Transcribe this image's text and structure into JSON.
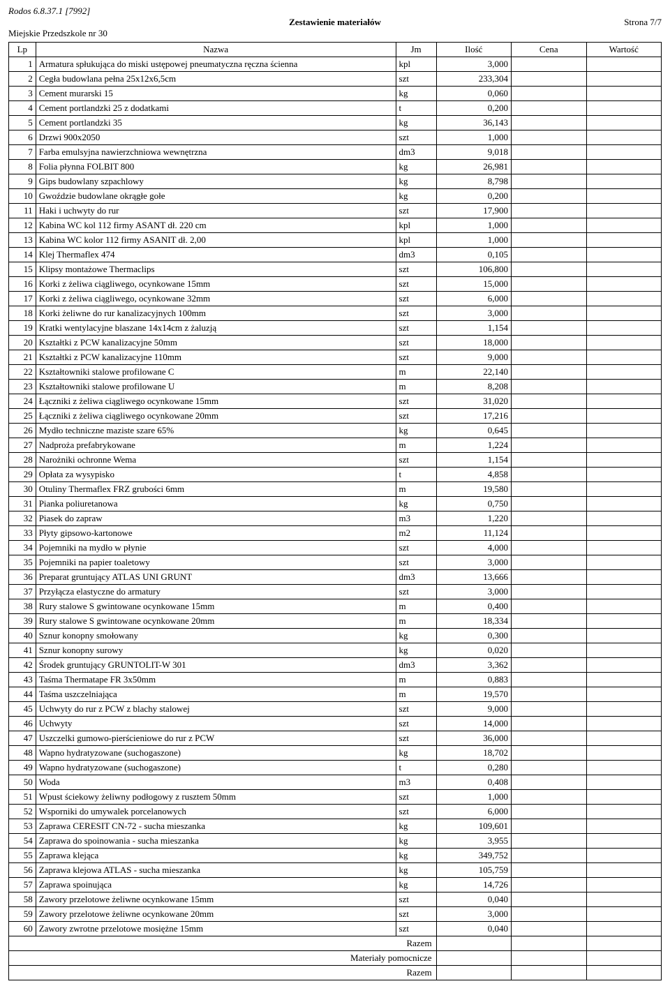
{
  "meta": {
    "app_line": "Rodos 6.8.37.1 [7992]",
    "title": "Zestawienie materiałów",
    "page_label": "Strona 7/7",
    "project": "Miejskie Przedszkole nr 30"
  },
  "table": {
    "headers": {
      "lp": "Lp",
      "name": "Nazwa",
      "jm": "Jm",
      "qty": "Ilość",
      "price": "Cena",
      "value": "Wartość"
    },
    "rows": [
      {
        "lp": "1",
        "name": "Armatura spłukująca do miski ustępowej pneumatyczna ręczna ścienna",
        "jm": "kpl",
        "qty": "3,000"
      },
      {
        "lp": "2",
        "name": "Cegła budowlana pełna 25x12x6,5cm",
        "jm": "szt",
        "qty": "233,304"
      },
      {
        "lp": "3",
        "name": "Cement murarski 15",
        "jm": "kg",
        "qty": "0,060"
      },
      {
        "lp": "4",
        "name": "Cement portlandzki 25 z dodatkami",
        "jm": "t",
        "qty": "0,200"
      },
      {
        "lp": "5",
        "name": "Cement portlandzki 35",
        "jm": "kg",
        "qty": "36,143"
      },
      {
        "lp": "6",
        "name": "Drzwi 900x2050",
        "jm": "szt",
        "qty": "1,000"
      },
      {
        "lp": "7",
        "name": "Farba emulsyjna nawierzchniowa wewnętrzna",
        "jm": "dm3",
        "qty": "9,018"
      },
      {
        "lp": "8",
        "name": "Folia płynna FOLBIT 800",
        "jm": "kg",
        "qty": "26,981"
      },
      {
        "lp": "9",
        "name": "Gips budowlany szpachlowy",
        "jm": "kg",
        "qty": "8,798"
      },
      {
        "lp": "10",
        "name": "Gwoździe budowlane okrągłe gołe",
        "jm": "kg",
        "qty": "0,200"
      },
      {
        "lp": "11",
        "name": "Haki i uchwyty do rur",
        "jm": "szt",
        "qty": "17,900"
      },
      {
        "lp": "12",
        "name": "Kabina WC kol 112 firmy ASANT dł. 220 cm",
        "jm": "kpl",
        "qty": "1,000"
      },
      {
        "lp": "13",
        "name": "Kabina WC kolor 112 firmy ASANIT dł. 2,00",
        "jm": "kpl",
        "qty": "1,000"
      },
      {
        "lp": "14",
        "name": "Klej Thermaflex 474",
        "jm": "dm3",
        "qty": "0,105"
      },
      {
        "lp": "15",
        "name": "Klipsy montażowe Thermaclips",
        "jm": "szt",
        "qty": "106,800"
      },
      {
        "lp": "16",
        "name": "Korki z żeliwa ciągliwego, ocynkowane 15mm",
        "jm": "szt",
        "qty": "15,000"
      },
      {
        "lp": "17",
        "name": "Korki z żeliwa ciągliwego, ocynkowane 32mm",
        "jm": "szt",
        "qty": "6,000"
      },
      {
        "lp": "18",
        "name": "Korki żeliwne do rur kanalizacyjnych 100mm",
        "jm": "szt",
        "qty": "3,000"
      },
      {
        "lp": "19",
        "name": "Kratki wentylacyjne blaszane 14x14cm z żaluzją",
        "jm": "szt",
        "qty": "1,154"
      },
      {
        "lp": "20",
        "name": "Kształtki z PCW kanalizacyjne  50mm",
        "jm": "szt",
        "qty": "18,000"
      },
      {
        "lp": "21",
        "name": "Kształtki z PCW kanalizacyjne 110mm",
        "jm": "szt",
        "qty": "9,000"
      },
      {
        "lp": "22",
        "name": "Kształtowniki stalowe profilowane C",
        "jm": "m",
        "qty": "22,140"
      },
      {
        "lp": "23",
        "name": "Kształtowniki stalowe profilowane U",
        "jm": "m",
        "qty": "8,208"
      },
      {
        "lp": "24",
        "name": "Łączniki z żeliwa ciągliwego ocynkowane  15mm",
        "jm": "szt",
        "qty": "31,020"
      },
      {
        "lp": "25",
        "name": "Łączniki z żeliwa ciągliwego ocynkowane  20mm",
        "jm": "szt",
        "qty": "17,216"
      },
      {
        "lp": "26",
        "name": "Mydło techniczne maziste szare 65%",
        "jm": "kg",
        "qty": "0,645"
      },
      {
        "lp": "27",
        "name": "Nadproża prefabrykowane",
        "jm": "m",
        "qty": "1,224"
      },
      {
        "lp": "28",
        "name": "Narożniki ochronne Wema",
        "jm": "szt",
        "qty": "1,154"
      },
      {
        "lp": "29",
        "name": "Opłata za wysypisko",
        "jm": "t",
        "qty": "4,858"
      },
      {
        "lp": "30",
        "name": "Otuliny Thermaflex FRZ grubości  6mm",
        "jm": "m",
        "qty": "19,580"
      },
      {
        "lp": "31",
        "name": "Pianka poliuretanowa",
        "jm": "kg",
        "qty": "0,750"
      },
      {
        "lp": "32",
        "name": "Piasek do zapraw",
        "jm": "m3",
        "qty": "1,220"
      },
      {
        "lp": "33",
        "name": "Płyty gipsowo-kartonowe",
        "jm": "m2",
        "qty": "11,124"
      },
      {
        "lp": "34",
        "name": "Pojemniki na mydło w płynie",
        "jm": "szt",
        "qty": "4,000"
      },
      {
        "lp": "35",
        "name": "Pojemniki na papier toaletowy",
        "jm": "szt",
        "qty": "3,000"
      },
      {
        "lp": "36",
        "name": "Preparat gruntujący ATLAS UNI GRUNT",
        "jm": "dm3",
        "qty": "13,666"
      },
      {
        "lp": "37",
        "name": "Przyłącza elastyczne do armatury",
        "jm": "szt",
        "qty": "3,000"
      },
      {
        "lp": "38",
        "name": "Rury stalowe S gwintowane ocynkowane  15mm",
        "jm": "m",
        "qty": "0,400"
      },
      {
        "lp": "39",
        "name": "Rury stalowe S gwintowane ocynkowane  20mm",
        "jm": "m",
        "qty": "18,334"
      },
      {
        "lp": "40",
        "name": "Sznur konopny smołowany",
        "jm": "kg",
        "qty": "0,300"
      },
      {
        "lp": "41",
        "name": "Sznur konopny surowy",
        "jm": "kg",
        "qty": "0,020"
      },
      {
        "lp": "42",
        "name": "Środek gruntujący GRUNTOLIT-W 301",
        "jm": "dm3",
        "qty": "3,362"
      },
      {
        "lp": "43",
        "name": "Taśma Thermatape FR 3x50mm",
        "jm": "m",
        "qty": "0,883"
      },
      {
        "lp": "44",
        "name": "Taśma uszczelniająca",
        "jm": "m",
        "qty": "19,570"
      },
      {
        "lp": "45",
        "name": "Uchwyty do rur z PCW z blachy stalowej",
        "jm": "szt",
        "qty": "9,000"
      },
      {
        "lp": "46",
        "name": "Uchwyty",
        "jm": "szt",
        "qty": "14,000"
      },
      {
        "lp": "47",
        "name": "Uszczelki gumowo-pierścieniowe do rur z PCW",
        "jm": "szt",
        "qty": "36,000"
      },
      {
        "lp": "48",
        "name": "Wapno hydratyzowane (suchogaszone)",
        "jm": "kg",
        "qty": "18,702"
      },
      {
        "lp": "49",
        "name": "Wapno hydratyzowane (suchogaszone)",
        "jm": "t",
        "qty": "0,280"
      },
      {
        "lp": "50",
        "name": "Woda",
        "jm": "m3",
        "qty": "0,408"
      },
      {
        "lp": "51",
        "name": "Wpust ściekowy żeliwny podłogowy z rusztem  50mm",
        "jm": "szt",
        "qty": "1,000"
      },
      {
        "lp": "52",
        "name": "Wsporniki do umywalek porcelanowych",
        "jm": "szt",
        "qty": "6,000"
      },
      {
        "lp": "53",
        "name": "Zaprawa CERESIT CN-72 - sucha mieszanka",
        "jm": "kg",
        "qty": "109,601"
      },
      {
        "lp": "54",
        "name": "Zaprawa do spoinowania - sucha mieszanka",
        "jm": "kg",
        "qty": "3,955"
      },
      {
        "lp": "55",
        "name": "Zaprawa klejąca",
        "jm": "kg",
        "qty": "349,752"
      },
      {
        "lp": "56",
        "name": "Zaprawa klejowa ATLAS - sucha mieszanka",
        "jm": "kg",
        "qty": "105,759"
      },
      {
        "lp": "57",
        "name": "Zaprawa spoinująca",
        "jm": "kg",
        "qty": "14,726"
      },
      {
        "lp": "58",
        "name": "Zawory przelotowe żeliwne ocynkowane 15mm",
        "jm": "szt",
        "qty": "0,040"
      },
      {
        "lp": "59",
        "name": "Zawory przelotowe żeliwne ocynkowane 20mm",
        "jm": "szt",
        "qty": "3,000"
      },
      {
        "lp": "60",
        "name": "Zawory zwrotne przelotowe mosiężne 15mm",
        "jm": "szt",
        "qty": "0,040"
      }
    ],
    "footer": {
      "razem1": "Razem",
      "aux": "Materiały pomocnicze",
      "razem2": "Razem"
    }
  }
}
